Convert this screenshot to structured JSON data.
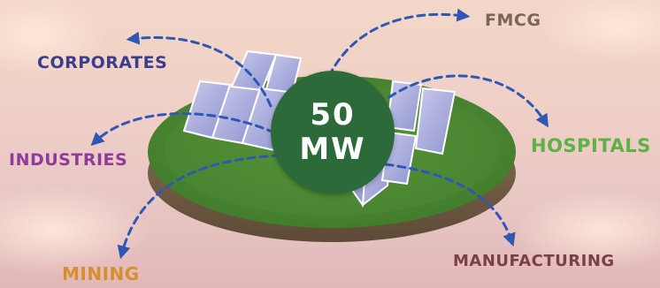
{
  "center": {
    "capacity": "50",
    "unit": "MW"
  },
  "labels": {
    "fmcg": "FMCG",
    "corporates": "CORPORATES",
    "industries": "INDUSTRIES",
    "hospitals": "HOSPITALS",
    "mining": "MINING",
    "manufacturing": "MANUFACTURING"
  },
  "colors": {
    "fmcg": "#7a6656",
    "corporates": "#3c3d8e",
    "industries": "#8d3c9b",
    "hospitals": "#5fb143",
    "mining": "#d68f2e",
    "manufacturing": "#7a4048",
    "arrow": "#2f57b5",
    "circle": "#2c6a3a"
  }
}
